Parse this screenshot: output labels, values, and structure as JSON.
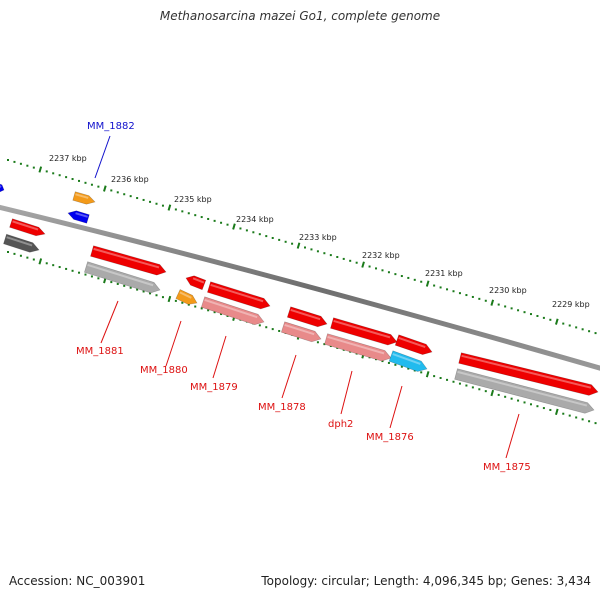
{
  "title": "Methanosarcina mazei Go1, complete genome",
  "footer": {
    "accession": "Accession: NC_003901",
    "summary": "Topology: circular; Length: 4,096,345 bp; Genes: 3,434"
  },
  "colors": {
    "backbone": "#7a7a7a",
    "tick": "#1a7a1a",
    "gene": "#ee0000",
    "gene_label": "#dd1111",
    "pseudo": "#e88a8a",
    "gray": "#aaaaaa",
    "darkgray": "#555555",
    "orange": "#f39a1a",
    "blue": "#0000ee",
    "cyan": "#22bbee",
    "blue_label": "#1111cc"
  },
  "scale_labels": [
    "2237 kbp",
    "2236 kbp",
    "2235 kbp",
    "2234 kbp",
    "2233 kbp",
    "2232 kbp",
    "2231 kbp",
    "2230 kbp",
    "2229 kbp"
  ],
  "gene_labels": [
    "MM_1882",
    "MM_1881",
    "MM_1880",
    "MM_1879",
    "MM_1878",
    "dph2",
    "MM_1876",
    "MM_1875"
  ]
}
